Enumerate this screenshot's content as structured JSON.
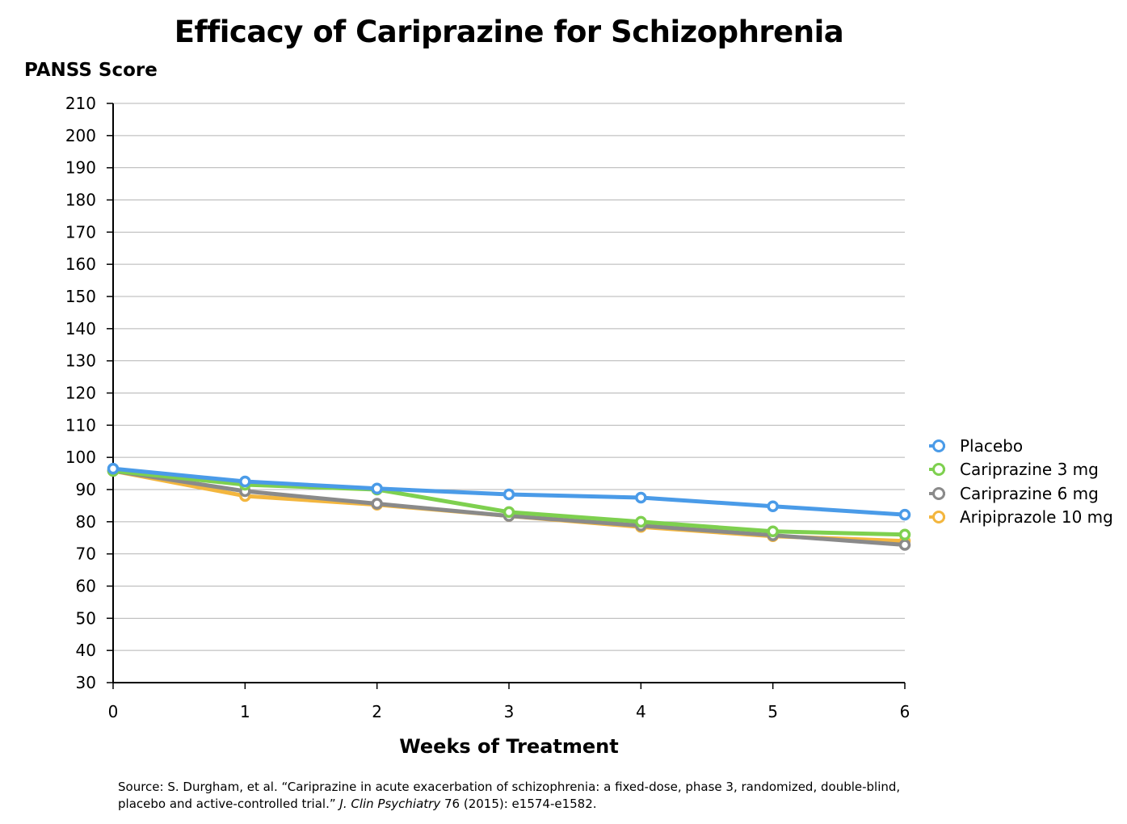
{
  "chart_data": {
    "type": "line",
    "title": "Efficacy of Cariprazine for Schizophrenia",
    "ylabel": "PANSS Score",
    "xlabel": "Weeks of Treatment",
    "x": [
      0,
      1,
      2,
      3,
      4,
      5,
      6
    ],
    "ylim": [
      30,
      210
    ],
    "yticks": [
      30,
      40,
      50,
      60,
      70,
      80,
      90,
      100,
      110,
      120,
      130,
      140,
      150,
      160,
      170,
      180,
      190,
      200,
      210
    ],
    "xticks": [
      0,
      1,
      2,
      3,
      4,
      5,
      6
    ],
    "grid": true,
    "legend_position": "right",
    "series": [
      {
        "name": "Placebo",
        "color": "#4a9be8",
        "values": [
          96.5,
          92.5,
          90.3,
          88.5,
          87.5,
          84.8,
          82.2
        ]
      },
      {
        "name": "Cariprazine 3 mg",
        "color": "#7ed04f",
        "values": [
          95.8,
          91.5,
          90.0,
          83.0,
          80.0,
          77.0,
          76.0
        ]
      },
      {
        "name": "Cariprazine 6 mg",
        "color": "#8a8a8a",
        "values": [
          95.8,
          89.5,
          85.6,
          81.8,
          78.8,
          75.8,
          72.8
        ]
      },
      {
        "name": "Aripiprazole 10 mg",
        "color": "#f3b63e",
        "values": [
          95.8,
          88.0,
          85.3,
          81.8,
          78.4,
          75.5,
          74.0
        ]
      }
    ]
  },
  "source": {
    "prefix": "Source: S. Durgham, et al. “Cariprazine in acute exacerbation of schizophrenia: a fixed-dose, phase 3, randomized, double-blind, placebo and active-controlled trial.” ",
    "journal": "J. Clin Psychiatry",
    "suffix": " 76 (2015): e1574-e1582."
  }
}
